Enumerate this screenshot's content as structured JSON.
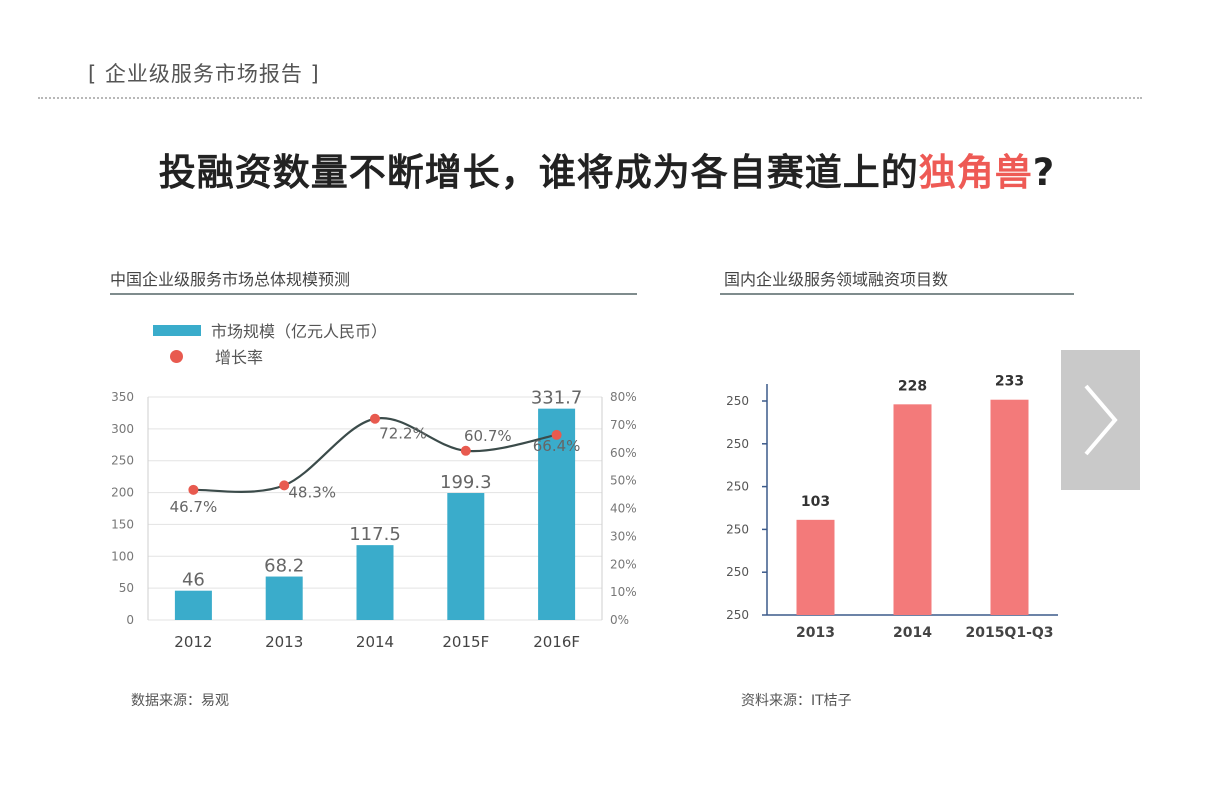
{
  "header": {
    "section_tag": "[ 企业级服务市场报告 ]",
    "headline_main": "投融资数量不断增长，谁将成为各自赛道上的",
    "headline_accent": "独角兽",
    "headline_tail": "?"
  },
  "colors": {
    "bar_blue": "#3aaccb",
    "growth_red": "#e85a4f",
    "trend_line": "#3b4b4a",
    "bar_pink": "#f37a7a",
    "accent_red": "#ee5a55",
    "axis_blue": "#3c5a8a"
  },
  "next_button": {
    "icon": "chevron-right-icon"
  },
  "chart_data": [
    {
      "type": "bar",
      "title": "中国企业级服务市场总体规模预测",
      "categories": [
        "2012",
        "2013",
        "2014",
        "2015F",
        "2016F"
      ],
      "series": [
        {
          "name": "市场规模（亿元人民币）",
          "values": [
            46,
            68.2,
            117.5,
            199.3,
            331.7
          ],
          "labels": [
            "46",
            "68.2",
            "117.5",
            "199.3",
            "331.7"
          ]
        },
        {
          "name": "增长率",
          "values": [
            46.7,
            48.3,
            72.2,
            60.7,
            66.4
          ],
          "labels": [
            "46.7%",
            "48.3%",
            "72.2%",
            "60.7%",
            "66.4%"
          ]
        }
      ],
      "ylim": [
        0,
        350
      ],
      "y_ticks": [
        "0",
        "50",
        "100",
        "150",
        "200",
        "250",
        "300",
        "350"
      ],
      "y2lim": [
        0,
        80
      ],
      "y2_ticks": [
        "0%",
        "10%",
        "20%",
        "30%",
        "40%",
        "50%",
        "60%",
        "70%",
        "80%"
      ],
      "legend_placement": "top-left",
      "grid": true,
      "source": "数据来源：易观"
    },
    {
      "type": "bar",
      "title": "国内企业级服务领域融资项目数",
      "categories": [
        "2013",
        "2014",
        "2015Q1-Q3"
      ],
      "values": [
        103,
        228,
        233
      ],
      "value_labels": [
        "103",
        "228",
        "233"
      ],
      "y_ticks": [
        "250",
        "250",
        "250",
        "250",
        "250",
        "250"
      ],
      "ylim": [
        0,
        250
      ],
      "grid": false,
      "source": "资料来源：IT桔子"
    }
  ]
}
